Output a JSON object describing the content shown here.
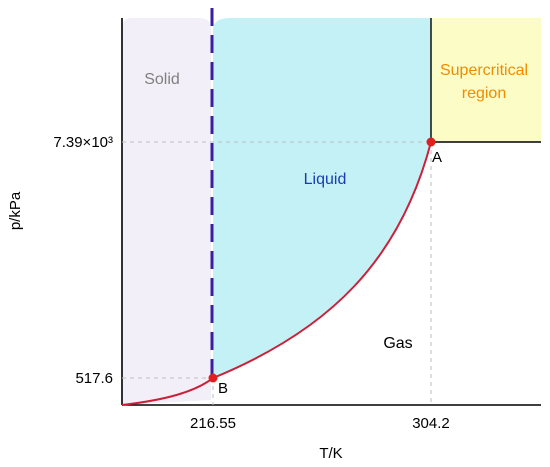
{
  "diagram": {
    "axes": {
      "x_label": "T/K",
      "y_label": "p/kPa",
      "x_ticks": [
        "216.55",
        "304.2"
      ],
      "y_ticks": [
        "517.6",
        "7.39×10³"
      ]
    },
    "regions": {
      "solid": "Solid",
      "liquid": "Liquid",
      "gas": "Gas",
      "supercritical_line1": "Supercritical",
      "supercritical_line2": "region"
    },
    "points": {
      "critical": "A",
      "triple": "B"
    },
    "colors": {
      "solid_fill": "#f2eff8",
      "liquid_fill": "#c4f1f5",
      "supercritical_fill": "#fbfcc6",
      "solid_text": "#808080",
      "liquid_text": "#1a3db3",
      "supercritical_text": "#f08c00",
      "boundary_curve": "#cc1f3a",
      "point_marker": "#e02020",
      "melting_line": "#3a1fa3",
      "guide_line": "#bdbdbd"
    }
  }
}
